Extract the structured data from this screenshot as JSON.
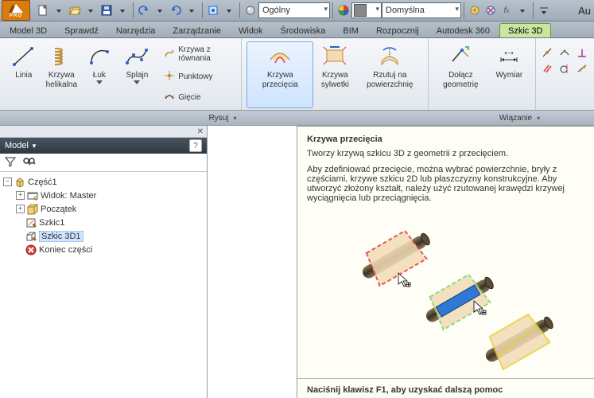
{
  "app_title_right": "Au",
  "qat": {
    "combo_general": "Ogólny",
    "combo_default": "Domyślna"
  },
  "tabs": [
    "Model 3D",
    "Sprawdź",
    "Narzędzia",
    "Zarządzanie",
    "Widok",
    "Środowiska",
    "BIM",
    "Rozpocznij",
    "Autodesk 360",
    "Szkic 3D"
  ],
  "active_tab_index": 9,
  "ribbon": {
    "big": {
      "linia": "Linia",
      "krzywa_helikalna": "Krzywa\nhelikalna",
      "luk": "Łuk",
      "splajn": "Splajn"
    },
    "small": {
      "rownanie": "Krzywa z równania",
      "punktowy": "Punktowy",
      "giecie": "Gięcie"
    },
    "big2": {
      "krzywa_przeciecia": "Krzywa\nprzecięcia",
      "krzywa_sylwetki": "Krzywa\nsylwetki",
      "rzutuj": "Rzutuj na\npowierzchnię"
    },
    "big3": {
      "dolacz": "Dołącz\ngeometrię",
      "wymiar": "Wymiar"
    }
  },
  "panel_titles": {
    "rysuj": "Rysuj",
    "wiazanie": "Wiązanie"
  },
  "browser": {
    "header": "Model",
    "root": "Część1",
    "items": [
      {
        "label": "Widok: Master",
        "icon": "view",
        "toggle": "+"
      },
      {
        "label": "Początek",
        "icon": "origin",
        "toggle": "+"
      },
      {
        "label": "Szkic1",
        "icon": "sketch2d",
        "toggle": ""
      },
      {
        "label": "Szkic 3D1",
        "icon": "sketch3d",
        "toggle": "",
        "selected": true
      },
      {
        "label": "Koniec części",
        "icon": "end",
        "toggle": ""
      }
    ]
  },
  "tooltip": {
    "title": "Krzywa przecięcia",
    "line1": "Tworzy krzywą szkicu 3D z geometrii z przecięciem.",
    "line2": "Aby zdefiniować przecięcie, można wybrać powierzchnie, bryły z częściami, krzywe szkicu 2D lub płaszczyzny konstrukcyjne. Aby utworzyć złożony kształt, należy użyć rzutowanej krawędzi krzywej wyciągnięcia lub przeciągnięcia.",
    "footer": "Naciśnij klawisz F1, aby uzyskać dalszą pomoc",
    "colors": {
      "cream": "#f2dbb5",
      "rod": "#6b5a42",
      "red": "#e23b3b",
      "green": "#7fd06a",
      "blue": "#2f78d6",
      "yellow": "#e4d23a"
    }
  }
}
